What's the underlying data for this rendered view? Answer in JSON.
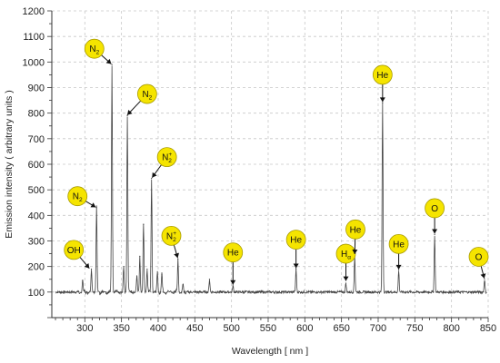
{
  "chart_data": {
    "type": "line",
    "xlabel": "Wavelength [ nm ]",
    "ylabel": "Emission intensity ( arbitrary units )",
    "xlim": [
      255,
      850
    ],
    "ylim": [
      0,
      1200
    ],
    "x_ticks": [
      300,
      350,
      400,
      450,
      500,
      550,
      600,
      650,
      700,
      750,
      800,
      850
    ],
    "y_ticks": [
      100,
      200,
      300,
      400,
      500,
      600,
      700,
      800,
      900,
      1000,
      1100,
      1200
    ],
    "grid": true,
    "baseline": 100,
    "peaks": [
      {
        "x": 297,
        "y": 145
      },
      {
        "x": 309,
        "y": 190
      },
      {
        "x": 316,
        "y": 430
      },
      {
        "x": 337,
        "y": 990
      },
      {
        "x": 353,
        "y": 200
      },
      {
        "x": 358,
        "y": 790
      },
      {
        "x": 371,
        "y": 160
      },
      {
        "x": 375,
        "y": 240
      },
      {
        "x": 380,
        "y": 365
      },
      {
        "x": 385,
        "y": 190
      },
      {
        "x": 391,
        "y": 545
      },
      {
        "x": 399,
        "y": 180
      },
      {
        "x": 405,
        "y": 170
      },
      {
        "x": 427,
        "y": 230
      },
      {
        "x": 434,
        "y": 130
      },
      {
        "x": 470,
        "y": 150
      },
      {
        "x": 502,
        "y": 125
      },
      {
        "x": 588,
        "y": 190
      },
      {
        "x": 656,
        "y": 135
      },
      {
        "x": 668,
        "y": 245
      },
      {
        "x": 706,
        "y": 840
      },
      {
        "x": 728,
        "y": 185
      },
      {
        "x": 777,
        "y": 325
      },
      {
        "x": 845,
        "y": 150
      }
    ],
    "annotations": [
      {
        "label": "OH",
        "sub": "",
        "sup": "",
        "target_x": 307,
        "target_y": 190,
        "cx": 285,
        "cy": 265
      },
      {
        "label": "N",
        "sub": "2",
        "sup": "",
        "target_x": 316,
        "target_y": 430,
        "cx": 290,
        "cy": 475
      },
      {
        "label": "N",
        "sub": "2",
        "sup": "",
        "target_x": 337,
        "target_y": 990,
        "cx": 313,
        "cy": 1052
      },
      {
        "label": "N",
        "sub": "2",
        "sup": "",
        "target_x": 357,
        "target_y": 790,
        "cx": 385,
        "cy": 875
      },
      {
        "label": "N",
        "sub": "2",
        "sup": "+",
        "target_x": 391,
        "target_y": 545,
        "cx": 412,
        "cy": 628
      },
      {
        "label": "N",
        "sub": "2",
        "sup": "+",
        "target_x": 427,
        "target_y": 230,
        "cx": 418,
        "cy": 320
      },
      {
        "label": "He",
        "sub": "",
        "sup": "",
        "target_x": 502,
        "target_y": 125,
        "cx": 502,
        "cy": 255
      },
      {
        "label": "He",
        "sub": "",
        "sup": "",
        "target_x": 588,
        "target_y": 190,
        "cx": 588,
        "cy": 305
      },
      {
        "label": "H",
        "sub": "α",
        "sup": "",
        "target_x": 656,
        "target_y": 140,
        "cx": 656,
        "cy": 250
      },
      {
        "label": "He",
        "sub": "",
        "sup": "",
        "target_x": 668,
        "target_y": 245,
        "cx": 669,
        "cy": 345
      },
      {
        "label": "He",
        "sub": "",
        "sup": "",
        "target_x": 706,
        "target_y": 840,
        "cx": 706,
        "cy": 950
      },
      {
        "label": "He",
        "sub": "",
        "sup": "",
        "target_x": 728,
        "target_y": 185,
        "cx": 728,
        "cy": 288
      },
      {
        "label": "O",
        "sub": "",
        "sup": "",
        "target_x": 777,
        "target_y": 325,
        "cx": 777,
        "cy": 428
      },
      {
        "label": "O",
        "sub": "",
        "sup": "",
        "target_x": 845,
        "target_y": 150,
        "cx": 837,
        "cy": 238
      }
    ],
    "colors": {
      "marker_fill": "#f5e400",
      "marker_stroke": "#a89b00",
      "line": "#444444",
      "grid": "#c8c8c8"
    }
  }
}
